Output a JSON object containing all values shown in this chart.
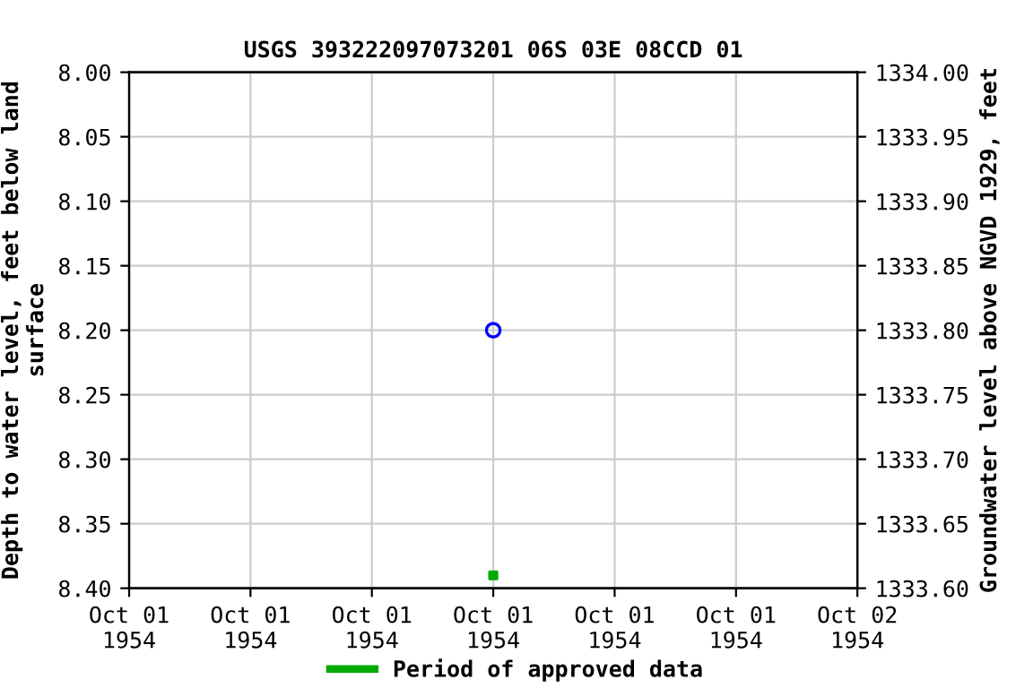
{
  "chart_data": {
    "type": "scatter",
    "title": "USGS 393222097073201 06S 03E 08CCD 01",
    "ylabel": "Depth to water level, feet below land\nsurface",
    "y2label": "Groundwater level above NGVD 1929, feet",
    "xlim": [
      "1954-10-01T00:00",
      "1954-10-02T00:00"
    ],
    "xticks": [
      {
        "value": "1954-10-01T00:00",
        "label": "Oct 01\n1954"
      },
      {
        "value": "1954-10-01T04:00",
        "label": "Oct 01\n1954"
      },
      {
        "value": "1954-10-01T08:00",
        "label": "Oct 01\n1954"
      },
      {
        "value": "1954-10-01T12:00",
        "label": "Oct 01\n1954"
      },
      {
        "value": "1954-10-01T16:00",
        "label": "Oct 01\n1954"
      },
      {
        "value": "1954-10-01T20:00",
        "label": "Oct 01\n1954"
      },
      {
        "value": "1954-10-02T00:00",
        "label": "Oct 02\n1954"
      }
    ],
    "ylim": [
      8.4,
      8.0
    ],
    "yticks": [
      {
        "value": 8.0,
        "label": "8.00"
      },
      {
        "value": 8.05,
        "label": "8.05"
      },
      {
        "value": 8.1,
        "label": "8.10"
      },
      {
        "value": 8.15,
        "label": "8.15"
      },
      {
        "value": 8.2,
        "label": "8.20"
      },
      {
        "value": 8.25,
        "label": "8.25"
      },
      {
        "value": 8.3,
        "label": "8.30"
      },
      {
        "value": 8.35,
        "label": "8.35"
      },
      {
        "value": 8.4,
        "label": "8.40"
      }
    ],
    "y2lim": [
      1333.6,
      1334.0
    ],
    "y2ticks": [
      {
        "value": 1333.6,
        "label": "1333.60"
      },
      {
        "value": 1333.65,
        "label": "1333.65"
      },
      {
        "value": 1333.7,
        "label": "1333.70"
      },
      {
        "value": 1333.75,
        "label": "1333.75"
      },
      {
        "value": 1333.8,
        "label": "1333.80"
      },
      {
        "value": 1333.85,
        "label": "1333.85"
      },
      {
        "value": 1333.9,
        "label": "1333.90"
      },
      {
        "value": 1333.95,
        "label": "1333.95"
      },
      {
        "value": 1334.0,
        "label": "1334.00"
      }
    ],
    "grid": true,
    "legend": "bottom",
    "series": [
      {
        "color": "#0000ff",
        "marker": "circle",
        "x": [
          "1954-10-01T12:00"
        ],
        "values": [
          8.2
        ]
      },
      {
        "name": "Period of approved data",
        "color": "#00aa00",
        "marker": "square",
        "x": [
          "1954-10-01T12:00"
        ],
        "values": [
          8.39
        ]
      }
    ]
  }
}
